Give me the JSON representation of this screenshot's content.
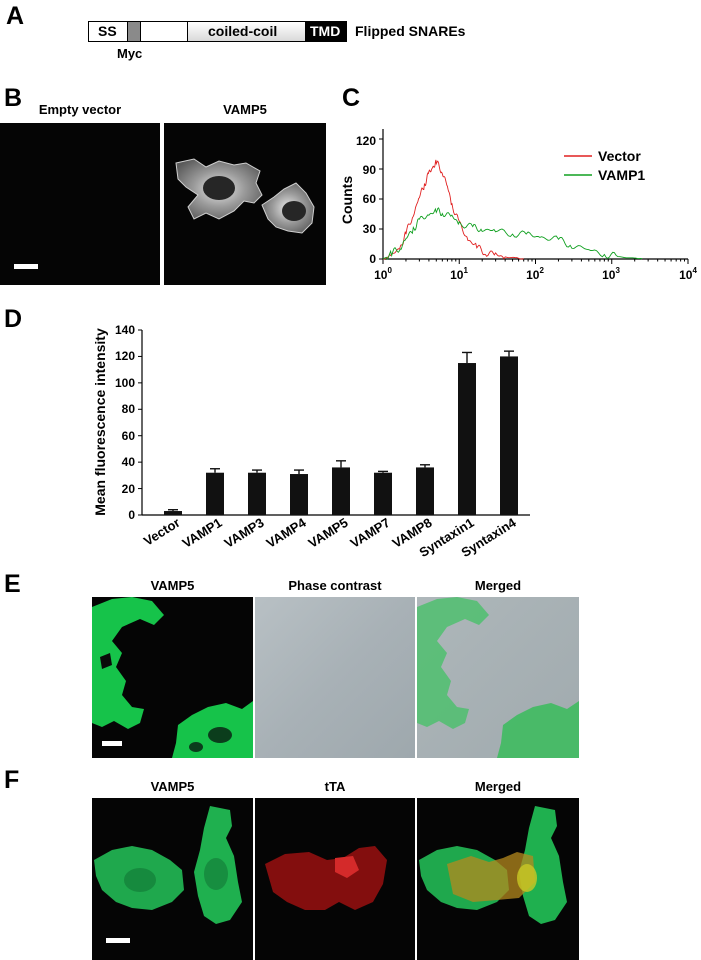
{
  "panels": {
    "a": {
      "label": "A",
      "segments": {
        "ss": "SS",
        "coiled_coil": "coiled-coil",
        "tmd": "TMD"
      },
      "title": "Flipped SNAREs",
      "myc_label": "Myc"
    },
    "b": {
      "label": "B",
      "left_title": "Empty vector",
      "right_title": "VAMP5"
    },
    "c": {
      "label": "C",
      "ylabel": "Counts",
      "yticks": [
        "0",
        "30",
        "60",
        "90",
        "120"
      ],
      "xticks": [
        "10",
        "10",
        "10",
        "10",
        "10"
      ],
      "xtick_exps": [
        "0",
        "1",
        "2",
        "3",
        "4"
      ]
    },
    "d": {
      "label": "D",
      "ylabel": "Mean fluorescence intensity",
      "yticks": [
        "0",
        "20",
        "40",
        "60",
        "80",
        "100",
        "120",
        "140"
      ]
    },
    "e": {
      "label": "E",
      "titles": [
        "VAMP5",
        "Phase contrast",
        "Merged"
      ]
    },
    "f": {
      "label": "F",
      "titles": [
        "VAMP5",
        "tTA",
        "Merged"
      ]
    }
  },
  "colors": {
    "vector": "#e02020",
    "vamp1": "#10a020",
    "green": "#16c34a",
    "red": "#c81414"
  },
  "chart_data": [
    {
      "type": "line",
      "xscale": "log",
      "xlim": [
        1,
        10000
      ],
      "ylim": [
        0,
        130
      ],
      "ylabel": "Counts",
      "legend": "top-right",
      "series": [
        {
          "name": "Vector",
          "x": [
            1,
            1.3,
            1.7,
            2,
            2.5,
            3,
            3.5,
            4,
            4.5,
            5,
            6,
            7,
            8,
            10,
            13,
            17,
            22,
            30,
            40,
            55,
            70
          ],
          "values": [
            0,
            3,
            12,
            25,
            45,
            62,
            75,
            85,
            92,
            96,
            88,
            72,
            55,
            35,
            20,
            12,
            7,
            4,
            2,
            1,
            0
          ]
        },
        {
          "name": "VAMP1",
          "x": [
            1,
            1.3,
            1.7,
            2,
            2.5,
            3,
            4,
            5,
            6,
            8,
            10,
            15,
            20,
            30,
            50,
            80,
            120,
            200,
            300,
            500,
            800,
            1200,
            2000,
            2500
          ],
          "values": [
            0,
            5,
            12,
            20,
            30,
            38,
            45,
            48,
            47,
            42,
            36,
            31,
            30,
            28,
            26,
            24,
            22,
            19,
            14,
            9,
            5,
            2,
            1,
            0
          ]
        }
      ]
    },
    {
      "type": "bar",
      "ylabel": "Mean fluorescence intensity",
      "ylim": [
        0,
        140
      ],
      "categories": [
        "Vector",
        "VAMP1",
        "VAMP3",
        "VAMP4",
        "VAMP5",
        "VAMP7",
        "VAMP8",
        "Syntaxin1",
        "Syntaxin4"
      ],
      "values": [
        3,
        32,
        32,
        31,
        36,
        32,
        36,
        115,
        120
      ],
      "errors": [
        1,
        3,
        2,
        3,
        5,
        1,
        2,
        8,
        4
      ]
    }
  ]
}
